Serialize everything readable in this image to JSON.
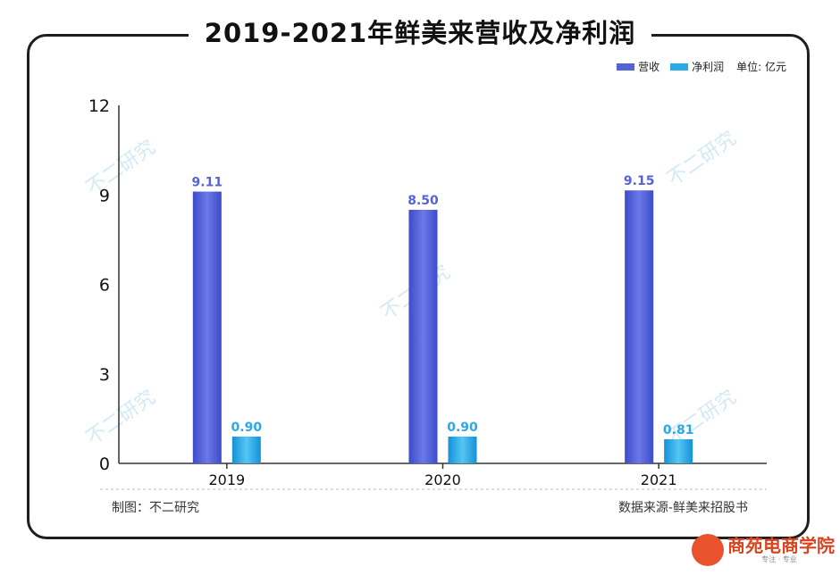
{
  "title": "2019-2021年鲜美来营收及净利润",
  "legend": {
    "revenue": "营收",
    "net_profit": "净利润",
    "unit": "单位: 亿元"
  },
  "footer": {
    "credit": "制图：不二研究",
    "source": "数据来源-鲜美来招股书"
  },
  "watermark": "不二研究",
  "logo": {
    "text": "商苑电商学院",
    "sub": "专注 · 专业"
  },
  "colors": {
    "revenue": "#5563d8",
    "net_profit": "#2aa9e6"
  },
  "chart_data": {
    "type": "bar",
    "categories": [
      "2019",
      "2020",
      "2021"
    ],
    "series": [
      {
        "name": "营收",
        "values": [
          9.11,
          8.5,
          9.15
        ],
        "labels": [
          "9.11",
          "8.50",
          "9.15"
        ]
      },
      {
        "name": "净利润",
        "values": [
          0.9,
          0.9,
          0.81
        ],
        "labels": [
          "0.90",
          "0.90",
          "0.81"
        ]
      }
    ],
    "ylim": [
      0,
      12
    ],
    "yticks": [
      0,
      3,
      6,
      9,
      12
    ],
    "grid": false,
    "legend_position": "top-right"
  }
}
